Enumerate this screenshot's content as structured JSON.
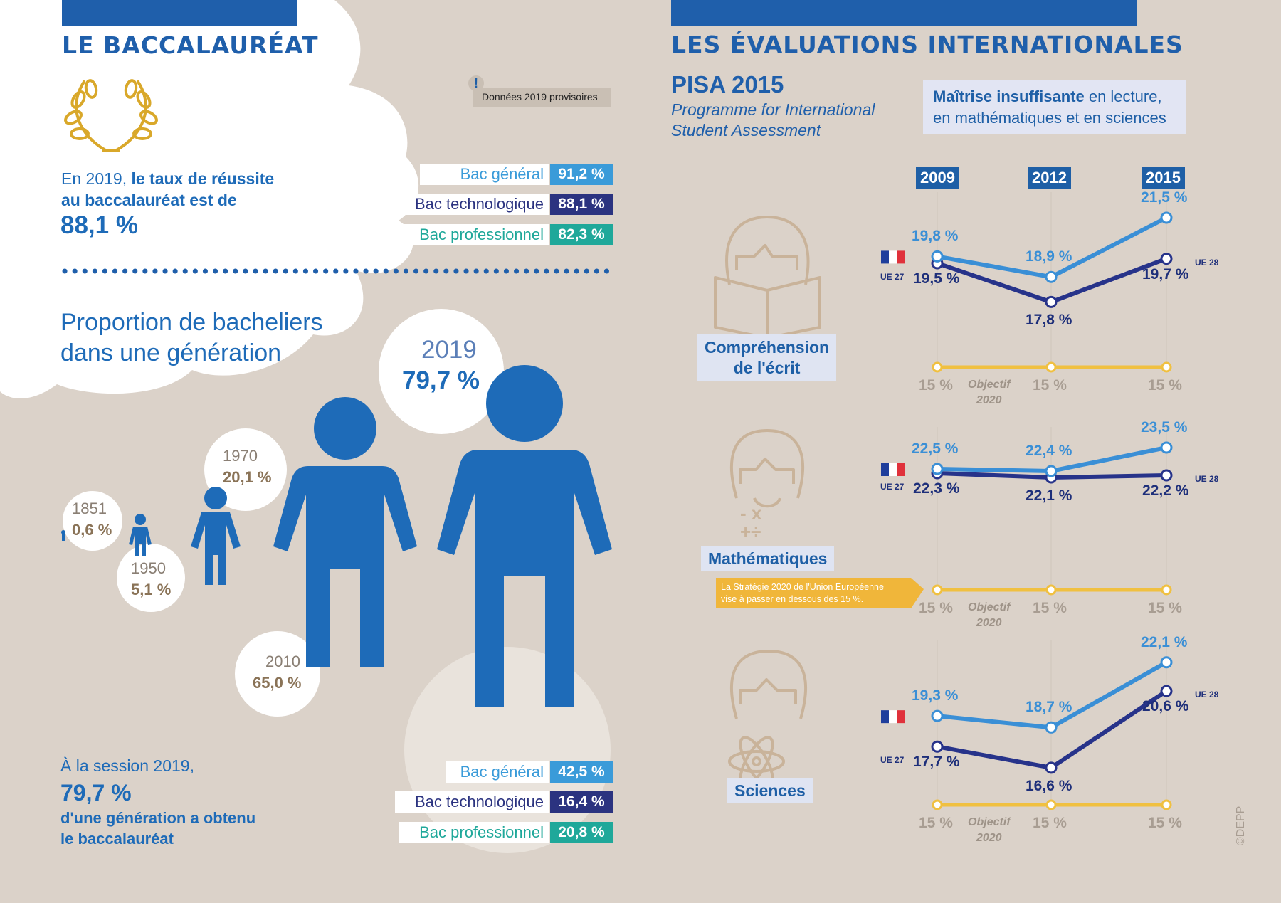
{
  "left": {
    "title": "LE BACCALAURÉAT",
    "warning_icon": "exclamation-icon",
    "warning_note": "Données 2019 provisoires",
    "intro_prefix": "En 2019, ",
    "intro_bold": "le taux de réussite",
    "intro_line2": "au baccalauréat est de",
    "intro_value": "88,1 %",
    "success_rates": [
      {
        "label": "Bac général",
        "value": "91,2 %"
      },
      {
        "label": "Bac technologique",
        "value": "88,1 %"
      },
      {
        "label": "Bac professionnel",
        "value": "82,3 %"
      }
    ],
    "proportion_title_1": "Proportion de bacheliers",
    "proportion_title_2": "dans une génération",
    "years": [
      {
        "year": "1851",
        "value": "0,6 %"
      },
      {
        "year": "1950",
        "value": "5,1 %"
      },
      {
        "year": "1970",
        "value": "20,1 %"
      },
      {
        "year": "2010",
        "value": "65,0 %"
      },
      {
        "year": "2019",
        "value": "79,7 %"
      }
    ],
    "session_line1": "À la session 2019,",
    "session_value": "79,7 %",
    "session_line2": "d'une génération a obtenu",
    "session_line3": "le baccalauréat",
    "generation_shares": [
      {
        "label": "Bac général",
        "value": "42,5 %"
      },
      {
        "label": "Bac technologique",
        "value": "16,4 %"
      },
      {
        "label": "Bac professionnel",
        "value": "20,8 %"
      }
    ]
  },
  "right": {
    "title": "LES ÉVALUATIONS INTERNATIONALES",
    "pisa_title": "PISA 2015",
    "pisa_sub1": "Programme for International",
    "pisa_sub2": "Student Assessment",
    "legend_bold": "Maîtrise insuffisante",
    "legend_rest1": " en lecture,",
    "legend_rest2": "en mathématiques et en sciences",
    "years": [
      "2009",
      "2012",
      "2015"
    ],
    "flag_label": "flag-france-icon",
    "ue27": "UE 27",
    "ue28": "UE 28",
    "objective_word": "Objectif",
    "objective_year": "2020",
    "objective_value": "15 %",
    "strategy_note_1": "La Stratégie 2020 de l'Union Européenne",
    "strategy_note_2": "vise à passer en dessous des 15 %.",
    "credit": "©DEPP",
    "panels": [
      {
        "name": "Compréhension de l'écrit",
        "line1": "Compréhension",
        "line2": "de l'écrit",
        "france": [
          "19,8 %",
          "18,9 %",
          "21,5 %"
        ],
        "ue": [
          "19,5 %",
          "17,8 %",
          "19,7 %"
        ],
        "france_vals": [
          19.8,
          18.9,
          21.5
        ],
        "ue_vals": [
          19.5,
          17.8,
          19.7
        ]
      },
      {
        "name": "Mathématiques",
        "line1": "Mathématiques",
        "line2": "",
        "france": [
          "22,5 %",
          "22,4 %",
          "23,5 %"
        ],
        "ue": [
          "22,3 %",
          "22,1 %",
          "22,2 %"
        ],
        "france_vals": [
          22.5,
          22.4,
          23.5
        ],
        "ue_vals": [
          22.3,
          22.1,
          22.2
        ]
      },
      {
        "name": "Sciences",
        "line1": "Sciences",
        "line2": "",
        "france": [
          "19,3 %",
          "18,7 %",
          "22,1 %"
        ],
        "ue": [
          "17,7 %",
          "16,6 %",
          "20,6 %"
        ],
        "france_vals": [
          19.3,
          18.7,
          22.1
        ],
        "ue_vals": [
          17.7,
          16.6,
          20.6
        ]
      }
    ]
  },
  "colors": {
    "background": "#dbd2c9",
    "title_blue": "#1f5fab",
    "gen_blue": "#3a9bd9",
    "tech_navy": "#2b3380",
    "pro_teal": "#1fa89a",
    "france_line": "#3a8fd6",
    "ue_line": "#27338a",
    "objective_line": "#f0c040",
    "figure_blue": "#1e6bb8"
  }
}
